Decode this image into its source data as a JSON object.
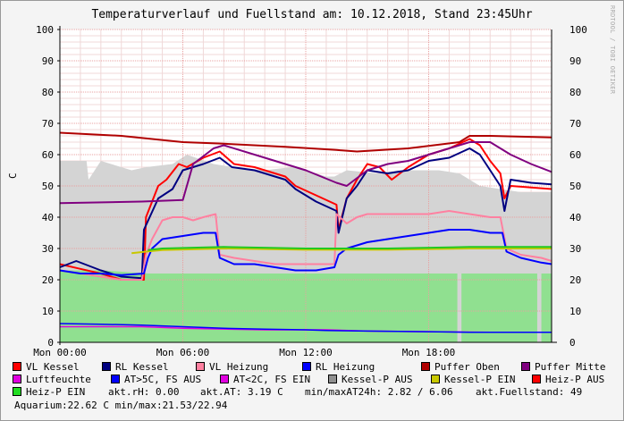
{
  "chart_data": {
    "type": "line",
    "title": "Temperaturverlauf und Fuellstand am: 10.12.2018, Stand 23:45Uhr",
    "side_text": "RRDTOOL / TOBI OETIKER",
    "ylabel": "C",
    "ylim": [
      0,
      100
    ],
    "yticks": [
      0,
      10,
      20,
      30,
      40,
      50,
      60,
      70,
      80,
      90,
      100
    ],
    "xlim": [
      0,
      24
    ],
    "xticks": [
      {
        "x": 0,
        "label": "Mon 00:00"
      },
      {
        "x": 6,
        "label": "Mon 06:00"
      },
      {
        "x": 12,
        "label": "Mon 12:00"
      },
      {
        "x": 18,
        "label": "Mon 18:00"
      }
    ],
    "areas": [
      {
        "name": "Kessel-P AUS",
        "color": "#d4d4d4",
        "points": [
          [
            0,
            58
          ],
          [
            1.3,
            58
          ],
          [
            1.4,
            52
          ],
          [
            2,
            58
          ],
          [
            3.5,
            55
          ],
          [
            4.2,
            56
          ],
          [
            5.5,
            57
          ],
          [
            6.2,
            60
          ],
          [
            7.5,
            57
          ],
          [
            8.5,
            56
          ],
          [
            10,
            55
          ],
          [
            11.3,
            56
          ],
          [
            12,
            55
          ],
          [
            13,
            53
          ],
          [
            13.4,
            53
          ],
          [
            14,
            55
          ],
          [
            15.5,
            54
          ],
          [
            16.5,
            55
          ],
          [
            17.5,
            55
          ],
          [
            18.5,
            55
          ],
          [
            19.5,
            54
          ],
          [
            20.5,
            50
          ],
          [
            21.5,
            49
          ],
          [
            22.5,
            48
          ],
          [
            24,
            48
          ]
        ]
      },
      {
        "name": "Heiz-P EIN",
        "color": "#90e090",
        "segments": [
          [
            [
              0,
              23
            ],
            [
              2.1,
              23
            ],
            [
              4.3,
              22
            ],
            [
              10,
              22
            ],
            [
              14.5,
              22
            ],
            [
              19.4,
              22
            ]
          ],
          [
            [
              19.6,
              22
            ],
            [
              23.3,
              22
            ]
          ],
          [
            [
              23.5,
              22
            ],
            [
              24,
              22
            ]
          ]
        ]
      }
    ],
    "series": [
      {
        "name": "VL Kessel",
        "color": "#ff0000",
        "values": [
          [
            0,
            25
          ],
          [
            1,
            23.5
          ],
          [
            2,
            22
          ],
          [
            3,
            20
          ],
          [
            4.1,
            20
          ],
          [
            4.2,
            40
          ],
          [
            4.8,
            50
          ],
          [
            5.2,
            52
          ],
          [
            5.8,
            57
          ],
          [
            6.2,
            56
          ],
          [
            7,
            59
          ],
          [
            7.8,
            61
          ],
          [
            8.5,
            57
          ],
          [
            9.5,
            56
          ],
          [
            10.5,
            54
          ],
          [
            11,
            53
          ],
          [
            11.5,
            50
          ],
          [
            12.5,
            47
          ],
          [
            13.5,
            44
          ],
          [
            13.6,
            36
          ],
          [
            14,
            46
          ],
          [
            14.5,
            52
          ],
          [
            15,
            57
          ],
          [
            15.6,
            56
          ],
          [
            16.2,
            52
          ],
          [
            17,
            56
          ],
          [
            18,
            60
          ],
          [
            19,
            62
          ],
          [
            20,
            65
          ],
          [
            20.5,
            63
          ],
          [
            21,
            58
          ],
          [
            21.5,
            54
          ],
          [
            21.7,
            46
          ],
          [
            22,
            50
          ],
          [
            23,
            49.5
          ],
          [
            24,
            49
          ]
        ]
      },
      {
        "name": "RL Kessel",
        "color": "#000080",
        "values": [
          [
            0,
            24
          ],
          [
            0.8,
            26
          ],
          [
            2,
            23
          ],
          [
            3,
            21
          ],
          [
            4,
            20.5
          ],
          [
            4.1,
            36
          ],
          [
            4.8,
            46
          ],
          [
            5.5,
            49
          ],
          [
            6,
            55
          ],
          [
            7,
            57
          ],
          [
            7.8,
            59
          ],
          [
            8.4,
            56
          ],
          [
            9.5,
            55
          ],
          [
            10.5,
            53
          ],
          [
            11,
            52
          ],
          [
            11.5,
            49
          ],
          [
            12.5,
            45
          ],
          [
            13.5,
            42
          ],
          [
            13.6,
            35
          ],
          [
            14,
            46
          ],
          [
            14.5,
            50
          ],
          [
            15,
            55
          ],
          [
            16,
            54
          ],
          [
            17,
            55
          ],
          [
            18,
            58
          ],
          [
            19,
            59
          ],
          [
            20,
            62
          ],
          [
            20.5,
            60
          ],
          [
            21,
            55
          ],
          [
            21.5,
            50
          ],
          [
            21.7,
            42
          ],
          [
            22,
            52
          ],
          [
            23,
            51
          ],
          [
            24,
            50.5
          ]
        ]
      },
      {
        "name": "VL Heizung",
        "color": "#ff80a0",
        "values": [
          [
            0,
            23
          ],
          [
            2,
            21
          ],
          [
            3,
            20
          ],
          [
            4,
            20
          ],
          [
            4.2,
            28
          ],
          [
            4.5,
            33
          ],
          [
            5,
            39
          ],
          [
            5.5,
            40
          ],
          [
            6,
            40
          ],
          [
            6.5,
            39
          ],
          [
            7,
            40
          ],
          [
            7.6,
            41
          ],
          [
            7.8,
            28
          ],
          [
            8.5,
            27
          ],
          [
            9.5,
            26
          ],
          [
            10.5,
            25
          ],
          [
            11.5,
            25
          ],
          [
            12,
            25
          ],
          [
            13,
            25
          ],
          [
            13.4,
            25
          ],
          [
            13.5,
            41
          ],
          [
            14,
            38
          ],
          [
            14.5,
            40
          ],
          [
            15,
            41
          ],
          [
            16,
            41
          ],
          [
            17,
            41
          ],
          [
            18,
            41
          ],
          [
            19,
            42
          ],
          [
            20,
            41
          ],
          [
            21,
            40
          ],
          [
            21.5,
            40
          ],
          [
            21.8,
            30
          ],
          [
            22.5,
            28
          ],
          [
            23.5,
            27
          ],
          [
            24,
            26
          ]
        ]
      },
      {
        "name": "RL Heizung",
        "color": "#0000ff",
        "values": [
          [
            0,
            23
          ],
          [
            1,
            22
          ],
          [
            2,
            22
          ],
          [
            3,
            21.5
          ],
          [
            4.1,
            22
          ],
          [
            4.3,
            27
          ],
          [
            4.5,
            30
          ],
          [
            5,
            33
          ],
          [
            6,
            34
          ],
          [
            7,
            35
          ],
          [
            7.6,
            35
          ],
          [
            7.8,
            27
          ],
          [
            8.5,
            25
          ],
          [
            9.5,
            25
          ],
          [
            10.5,
            24
          ],
          [
            11.5,
            23
          ],
          [
            12.5,
            23
          ],
          [
            13.4,
            24
          ],
          [
            13.6,
            28
          ],
          [
            14,
            30
          ],
          [
            15,
            32
          ],
          [
            16,
            33
          ],
          [
            17,
            34
          ],
          [
            18,
            35
          ],
          [
            19,
            36
          ],
          [
            20,
            36
          ],
          [
            21,
            35
          ],
          [
            21.6,
            35
          ],
          [
            21.8,
            29
          ],
          [
            22.5,
            27
          ],
          [
            23.5,
            25.5
          ],
          [
            24,
            25
          ]
        ]
      },
      {
        "name": "Puffer Oben",
        "color": "#b00000",
        "values": [
          [
            0,
            67
          ],
          [
            3,
            66
          ],
          [
            6,
            64
          ],
          [
            8,
            63.5
          ],
          [
            11,
            62.5
          ],
          [
            13.5,
            61.5
          ],
          [
            14.5,
            61
          ],
          [
            17,
            62
          ],
          [
            19.5,
            64
          ],
          [
            20,
            66
          ],
          [
            21,
            66
          ],
          [
            24,
            65.5
          ]
        ]
      },
      {
        "name": "Puffer Mitte",
        "color": "#800080",
        "values": [
          [
            0,
            44.5
          ],
          [
            4,
            45
          ],
          [
            6,
            45.5
          ],
          [
            6.5,
            57
          ],
          [
            7.5,
            62
          ],
          [
            8,
            63
          ],
          [
            10,
            59
          ],
          [
            12,
            55
          ],
          [
            13.5,
            51
          ],
          [
            14,
            50
          ],
          [
            15,
            55
          ],
          [
            16,
            57
          ],
          [
            17,
            58
          ],
          [
            18,
            60
          ],
          [
            19,
            62
          ],
          [
            20,
            64
          ],
          [
            21,
            64
          ],
          [
            22,
            60
          ],
          [
            23,
            57
          ],
          [
            24,
            54.5
          ]
        ]
      },
      {
        "name": "Luftfeuchte",
        "color": "#e000e0",
        "values": [
          [
            0,
            5
          ],
          [
            4,
            5
          ],
          [
            6,
            4.5
          ],
          [
            10,
            4
          ],
          [
            13,
            4
          ],
          [
            15,
            3.6
          ],
          [
            18,
            3.4
          ],
          [
            21,
            3.2
          ],
          [
            24,
            3.2
          ]
        ]
      },
      {
        "name": "AT>5C, FS AUS",
        "color": "#0000ff",
        "values": [
          [
            0,
            6
          ],
          [
            2,
            5.8
          ],
          [
            4,
            5.5
          ],
          [
            6,
            5
          ],
          [
            8,
            4.5
          ],
          [
            10,
            4.2
          ],
          [
            12,
            4
          ],
          [
            13,
            3.8
          ],
          [
            15,
            3.6
          ],
          [
            18,
            3.4
          ],
          [
            20,
            3.2
          ],
          [
            24,
            3.2
          ]
        ]
      },
      {
        "name": "Kessel-P EIN",
        "color": "#c8c800",
        "values": [
          [
            3.5,
            28.5
          ],
          [
            4.2,
            29
          ],
          [
            5,
            29.5
          ],
          [
            8,
            30
          ],
          [
            12,
            29.6
          ],
          [
            16,
            29.6
          ],
          [
            20,
            30
          ],
          [
            24,
            30
          ]
        ]
      },
      {
        "name": "Heiz-P EIN",
        "color": "#22c822",
        "values": [
          [
            4.3,
            29.5
          ],
          [
            5,
            30
          ],
          [
            8,
            30.5
          ],
          [
            12,
            30
          ],
          [
            16,
            30
          ],
          [
            20,
            30.5
          ],
          [
            24,
            30.5
          ]
        ]
      }
    ],
    "legend": [
      {
        "label": "VL Kessel",
        "color": "#ff0000"
      },
      {
        "label": "RL Kessel",
        "color": "#000080"
      },
      {
        "label": "VL Heizung",
        "color": "#ff80a0"
      },
      {
        "label": "RL Heizung",
        "color": "#0000ff"
      },
      {
        "label": "Puffer Oben",
        "color": "#b00000"
      },
      {
        "label": "Puffer Mitte",
        "color": "#800080"
      },
      {
        "label": "Luftfeuchte",
        "color": "#e000e0"
      },
      {
        "label": "AT>5C, FS AUS",
        "color": "#0000ff"
      },
      {
        "label": "AT<2C, FS EIN",
        "color": "#e000e0"
      },
      {
        "label": "Kessel-P AUS",
        "color": "#909090"
      },
      {
        "label": "Kessel-P EIN",
        "color": "#c8c800"
      },
      {
        "label": "Heiz-P AUS",
        "color": "#ff0000"
      },
      {
        "label": "Heiz-P EIN",
        "color": "#22dd22"
      }
    ],
    "info": {
      "rh": "akt.rH: 0.00",
      "at": "akt.AT: 3.19 C",
      "minmax": "min/maxAT24h: 2.82 / 6.06",
      "fuell": "akt.Fuellstand:   49",
      "aquarium": "Aquarium:22.62 C  min/max:21.53/22.94"
    }
  }
}
